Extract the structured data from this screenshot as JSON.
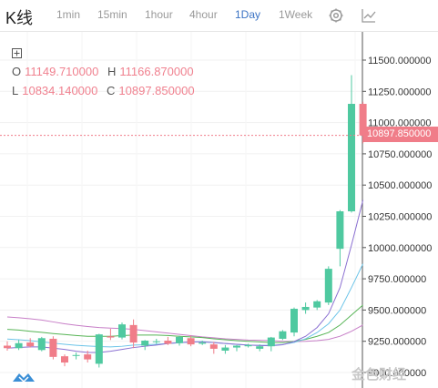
{
  "toolbar": {
    "title": "K线",
    "intervals": [
      "1min",
      "15min",
      "1hour",
      "4hour",
      "1Day",
      "1Week"
    ],
    "active_interval": "1Day",
    "settings_icon": "gear-icon",
    "indicator_icon": "line-chart-icon"
  },
  "ohlc": {
    "o_label": "O",
    "o_value": "11149.710000",
    "h_label": "H",
    "h_value": "11166.870000",
    "l_label": "L",
    "l_value": "10834.140000",
    "c_label": "C",
    "c_value": "10897.850000"
  },
  "current_price": "10897.850000",
  "watermark": "金色财经",
  "colors": {
    "up": "#4fc9a0",
    "down": "#f07d89",
    "ma_pink": "#c77ec7",
    "ma_blue": "#6cc4e8",
    "ma_green": "#56b455",
    "ma_purple": "#8a6fd1"
  },
  "chart_data": {
    "type": "candlestick",
    "y_ticks": [
      "11500.000000",
      "11250.000000",
      "11000.000000",
      "10750.000000",
      "10500.000000",
      "10250.000000",
      "10000.000000",
      "9750.000000",
      "9500.000000",
      "9250.000000",
      "9000.000000"
    ],
    "ylim": [
      8990,
      11540
    ],
    "candles": [
      {
        "o": 9215,
        "h": 9250,
        "l": 9175,
        "c": 9195
      },
      {
        "o": 9195,
        "h": 9260,
        "l": 9180,
        "c": 9235
      },
      {
        "o": 9240,
        "h": 9275,
        "l": 9200,
        "c": 9210
      },
      {
        "o": 9180,
        "h": 9285,
        "l": 9170,
        "c": 9275
      },
      {
        "o": 9270,
        "h": 9290,
        "l": 9105,
        "c": 9125
      },
      {
        "o": 9130,
        "h": 9145,
        "l": 9050,
        "c": 9080
      },
      {
        "o": 9135,
        "h": 9160,
        "l": 9105,
        "c": 9140
      },
      {
        "o": 9145,
        "h": 9175,
        "l": 9080,
        "c": 9105
      },
      {
        "o": 9070,
        "h": 9310,
        "l": 9040,
        "c": 9305
      },
      {
        "o": 9290,
        "h": 9350,
        "l": 9260,
        "c": 9280
      },
      {
        "o": 9280,
        "h": 9400,
        "l": 9265,
        "c": 9385
      },
      {
        "o": 9380,
        "h": 9425,
        "l": 9195,
        "c": 9240
      },
      {
        "o": 9215,
        "h": 9260,
        "l": 9180,
        "c": 9255
      },
      {
        "o": 9245,
        "h": 9270,
        "l": 9230,
        "c": 9250
      },
      {
        "o": 9255,
        "h": 9285,
        "l": 9220,
        "c": 9230
      },
      {
        "o": 9235,
        "h": 9295,
        "l": 9215,
        "c": 9285
      },
      {
        "o": 9275,
        "h": 9295,
        "l": 9210,
        "c": 9225
      },
      {
        "o": 9230,
        "h": 9255,
        "l": 9220,
        "c": 9240
      },
      {
        "o": 9225,
        "h": 9245,
        "l": 9150,
        "c": 9190
      },
      {
        "o": 9175,
        "h": 9220,
        "l": 9150,
        "c": 9200
      },
      {
        "o": 9200,
        "h": 9220,
        "l": 9170,
        "c": 9215
      },
      {
        "o": 9210,
        "h": 9230,
        "l": 9200,
        "c": 9220
      },
      {
        "o": 9190,
        "h": 9225,
        "l": 9170,
        "c": 9210
      },
      {
        "o": 9210,
        "h": 9285,
        "l": 9170,
        "c": 9280
      },
      {
        "o": 9270,
        "h": 9340,
        "l": 9260,
        "c": 9330
      },
      {
        "o": 9320,
        "h": 9520,
        "l": 9290,
        "c": 9510
      },
      {
        "o": 9500,
        "h": 9560,
        "l": 9470,
        "c": 9525
      },
      {
        "o": 9520,
        "h": 9580,
        "l": 9500,
        "c": 9570
      },
      {
        "o": 9560,
        "h": 9850,
        "l": 9540,
        "c": 9830
      },
      {
        "o": 9990,
        "h": 10300,
        "l": 9850,
        "c": 10290
      },
      {
        "o": 10290,
        "h": 11380,
        "l": 10280,
        "c": 11150
      },
      {
        "o": 11150,
        "h": 11167,
        "l": 10834,
        "c": 10898
      }
    ],
    "moving_averages": [
      {
        "color": "#c77ec7",
        "values": [
          9445,
          9438,
          9430,
          9420,
          9405,
          9390,
          9378,
          9368,
          9360,
          9355,
          9352,
          9345,
          9335,
          9325,
          9315,
          9305,
          9295,
          9285,
          9278,
          9270,
          9265,
          9260,
          9258,
          9255,
          9250,
          9248,
          9250,
          9255,
          9265,
          9290,
          9330,
          9380
        ]
      },
      {
        "color": "#56b455",
        "values": [
          9345,
          9340,
          9330,
          9322,
          9312,
          9304,
          9296,
          9290,
          9290,
          9290,
          9295,
          9300,
          9300,
          9300,
          9296,
          9290,
          9285,
          9280,
          9270,
          9262,
          9255,
          9250,
          9245,
          9240,
          9240,
          9250,
          9265,
          9290,
          9320,
          9380,
          9460,
          9540
        ]
      },
      {
        "color": "#6cc4e8",
        "values": [
          9268,
          9262,
          9255,
          9245,
          9235,
          9226,
          9218,
          9212,
          9208,
          9205,
          9210,
          9220,
          9222,
          9226,
          9232,
          9238,
          9244,
          9248,
          9240,
          9232,
          9225,
          9220,
          9218,
          9218,
          9224,
          9240,
          9270,
          9320,
          9390,
          9500,
          9680,
          9870
        ]
      },
      {
        "color": "#8a6fd1",
        "values": [
          9195,
          9200,
          9205,
          9205,
          9195,
          9185,
          9170,
          9160,
          9160,
          9170,
          9185,
          9200,
          9210,
          9220,
          9232,
          9240,
          9245,
          9245,
          9240,
          9232,
          9226,
          9220,
          9216,
          9214,
          9222,
          9248,
          9290,
          9360,
          9470,
          9680,
          10020,
          10380
        ]
      }
    ]
  }
}
